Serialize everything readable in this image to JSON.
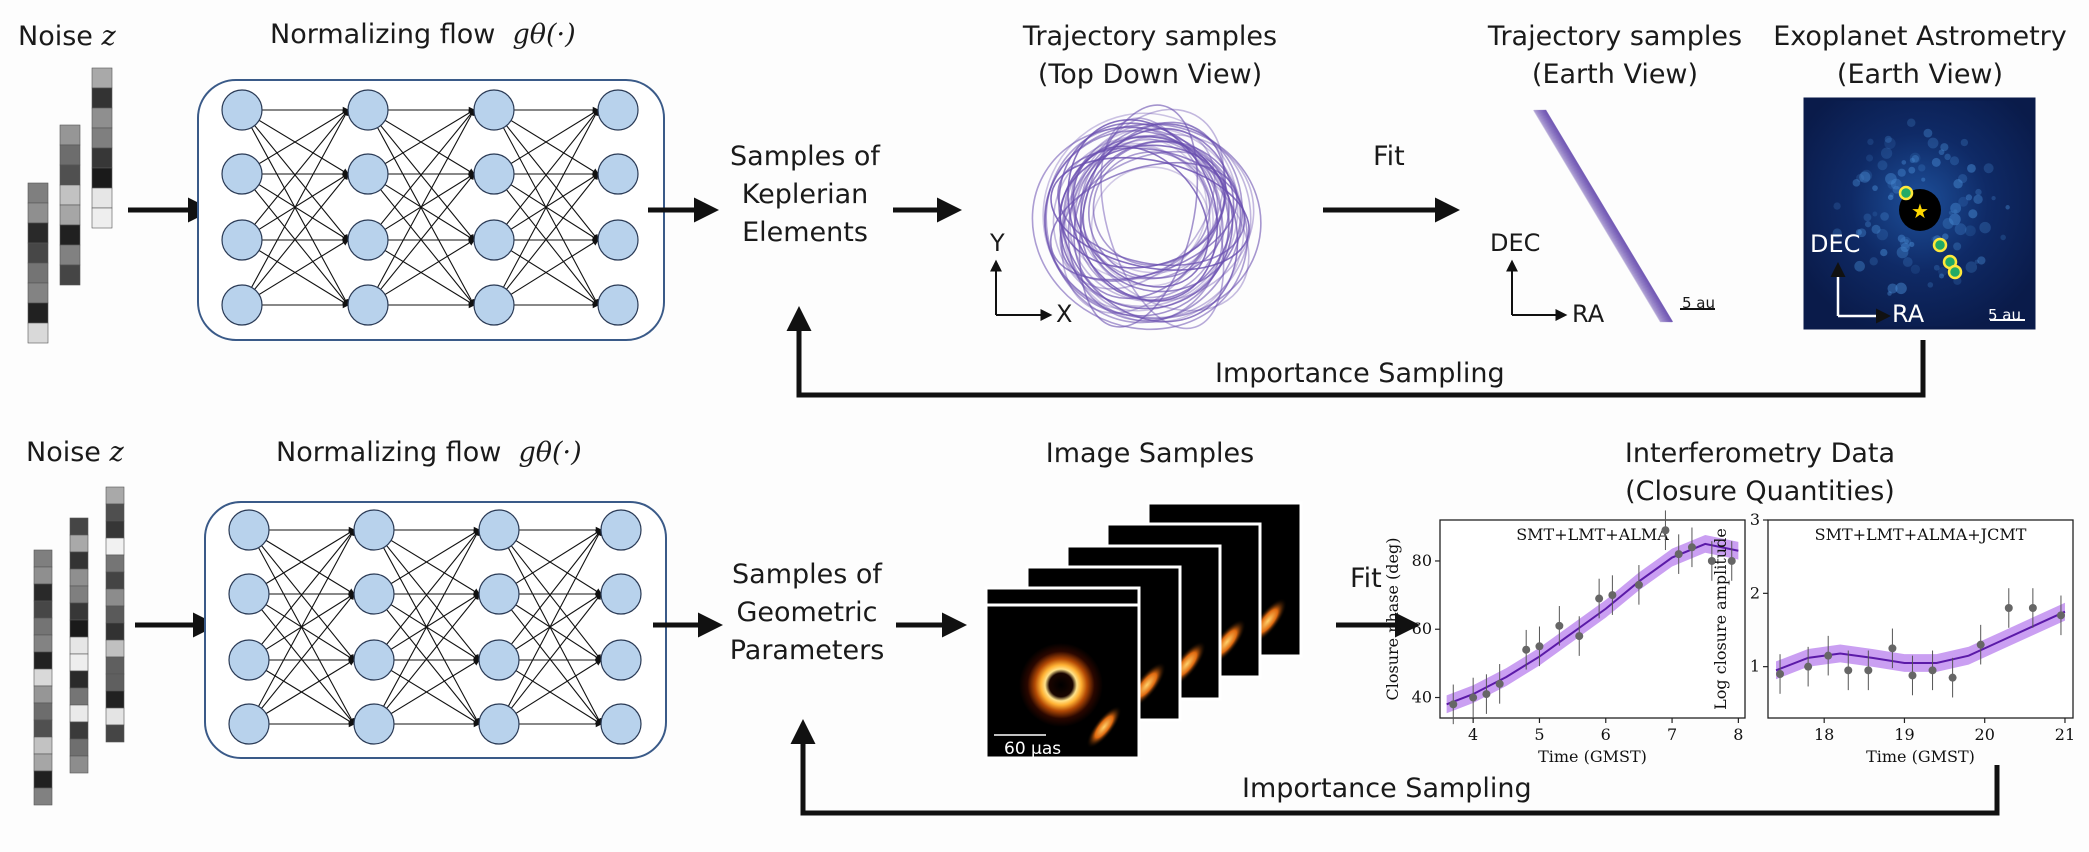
{
  "top": {
    "noise_label": "Noise",
    "noise_symbol": "z",
    "flow_label": "Normalizing flow",
    "flow_symbol": "gθ(·)",
    "samples_label_line1": "Samples of",
    "samples_label_line2": "Keplerian",
    "samples_label_line3": "Elements",
    "traj_top_line1": "Trajectory samples",
    "traj_top_line2": "(Top Down View)",
    "traj_earth_line1": "Trajectory samples",
    "traj_earth_line2": "(Earth View)",
    "astrometry_line1": "Exoplanet Astrometry",
    "astrometry_line2": "(Earth View)",
    "fit_label": "Fit",
    "importance_label": "Importance Sampling",
    "axis_y": "Y",
    "axis_x": "X",
    "axis_dec": "DEC",
    "axis_ra": "RA",
    "scale_label": "5 au",
    "astro_dec": "DEC",
    "astro_ra": "RA",
    "astro_scale": "5 au"
  },
  "bottom": {
    "noise_label": "Noise",
    "noise_symbol": "z",
    "flow_label": "Normalizing flow",
    "flow_symbol": "gθ(·)",
    "samples_label_line1": "Samples of",
    "samples_label_line2": "Geometric",
    "samples_label_line3": "Parameters",
    "image_samples_label": "Image Samples",
    "image_scale": "60 μas",
    "interf_line1": "Interferometry Data",
    "interf_line2": "(Closure Quantities)",
    "fit_label": "Fit",
    "importance_label": "Importance Sampling"
  },
  "colors": {
    "node_fill": "#b8d2ec",
    "box_stroke": "#3a5a88",
    "orbit": "#6a4fb0",
    "fit_band": "#8a2be2"
  },
  "chart_data": [
    {
      "type": "line",
      "title": "SMT+LMT+ALMA",
      "xlabel": "Time (GMST)",
      "ylabel": "Closure phase (deg)",
      "xlim": [
        3.5,
        8.1
      ],
      "ylim": [
        34,
        92
      ],
      "xticks": [
        4,
        5,
        6,
        7,
        8
      ],
      "yticks": [
        40,
        60,
        80
      ],
      "series": [
        {
          "kind": "model",
          "x": [
            3.6,
            4.0,
            4.5,
            5.0,
            5.5,
            6.0,
            6.5,
            7.0,
            7.5,
            8.0
          ],
          "y": [
            38,
            41,
            46,
            52,
            59,
            66,
            74,
            81,
            85,
            83
          ]
        },
        {
          "kind": "observed",
          "x": [
            3.7,
            4.0,
            4.2,
            4.4,
            4.8,
            5.0,
            5.3,
            5.6,
            5.9,
            6.1,
            6.5,
            6.9,
            7.1,
            7.3,
            7.6,
            7.9
          ],
          "y": [
            38,
            40,
            41,
            44,
            54,
            55,
            61,
            58,
            69,
            70,
            73,
            89,
            82,
            84,
            80,
            80
          ]
        }
      ]
    },
    {
      "type": "line",
      "title": "SMT+LMT+ALMA+JCMT",
      "xlabel": "Time (GMST)",
      "ylabel": "Log closure amplitude",
      "xlim": [
        17.3,
        21.1
      ],
      "ylim": [
        0.3,
        3.0
      ],
      "xticks": [
        18,
        19,
        20,
        21
      ],
      "yticks": [
        1,
        2,
        3
      ],
      "series": [
        {
          "kind": "model",
          "x": [
            17.4,
            17.8,
            18.2,
            18.6,
            19.0,
            19.4,
            19.8,
            20.2,
            20.6,
            21.0
          ],
          "y": [
            0.95,
            1.12,
            1.18,
            1.12,
            1.05,
            1.05,
            1.15,
            1.35,
            1.55,
            1.75
          ]
        },
        {
          "kind": "observed",
          "x": [
            17.45,
            17.8,
            18.05,
            18.3,
            18.55,
            18.85,
            19.1,
            19.35,
            19.6,
            19.95,
            20.3,
            20.6,
            20.95
          ],
          "y": [
            0.9,
            1.0,
            1.15,
            0.95,
            0.95,
            1.25,
            0.88,
            0.95,
            0.85,
            1.3,
            1.8,
            1.8,
            1.7
          ]
        }
      ]
    }
  ]
}
